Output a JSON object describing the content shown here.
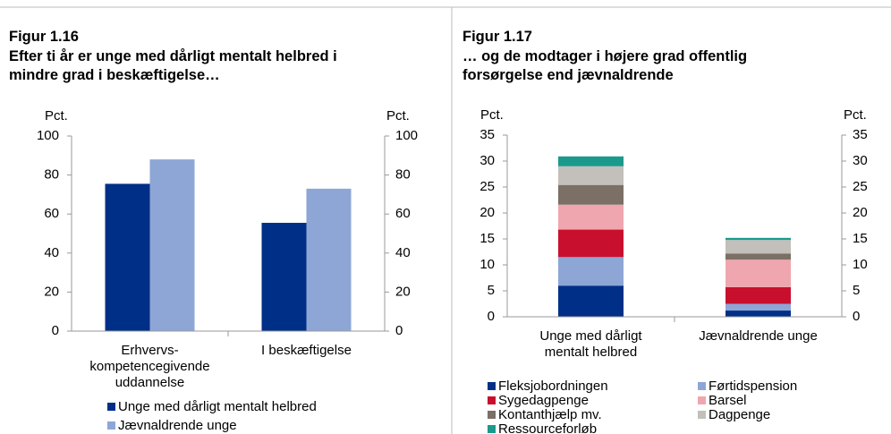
{
  "chart_data": [
    {
      "type": "bar",
      "figure": "Figur 1.16",
      "title": "Efter ti år er unge med dårligt mentalt helbred i mindre grad i beskæftigelse…",
      "y_label": "Pct.",
      "y2_label": "Pct.",
      "categories": [
        "Erhvervs-\nkompetencegivende\nuddannelse",
        "I beskæftigelse"
      ],
      "series": [
        {
          "name": "Unge med dårligt mentalt helbred",
          "color": "#002f87",
          "values": [
            75.5,
            55.5
          ]
        },
        {
          "name": "Jævnaldrende unge",
          "color": "#8ea6d6",
          "values": [
            88,
            73
          ]
        }
      ],
      "ylim": [
        0,
        100
      ],
      "yticks": [
        0,
        20,
        40,
        60,
        80,
        100
      ],
      "y2lim": [
        0,
        100
      ],
      "y2ticks": [
        0,
        20,
        40,
        60,
        80,
        100
      ]
    },
    {
      "type": "stacked_bar",
      "figure": "Figur 1.17",
      "title": "… og de modtager i højere grad offentlig forsørgelse end jævnaldrende",
      "y_label": "Pct.",
      "y2_label": "Pct.",
      "categories": [
        "Unge med dårligt\nmentalt helbred",
        "Jævnaldrende unge"
      ],
      "series": [
        {
          "name": "Fleksjobordningen",
          "color": "#002f87",
          "values": [
            6,
            1.2
          ]
        },
        {
          "name": "Førtidspension",
          "color": "#8ea6d6",
          "values": [
            5.5,
            1.3
          ]
        },
        {
          "name": "Sygedagpenge",
          "color": "#c8102e",
          "values": [
            5.3,
            3.2
          ]
        },
        {
          "name": "Barsel",
          "color": "#f0a6ae",
          "values": [
            4.8,
            5.3
          ]
        },
        {
          "name": "Kontanthjælp mv.",
          "color": "#7b6f66",
          "values": [
            3.8,
            1.2
          ]
        },
        {
          "name": "Dagpenge",
          "color": "#c3bfba",
          "values": [
            3.6,
            2.6
          ]
        },
        {
          "name": "Ressourceforløb",
          "color": "#1a9a8c",
          "values": [
            1.9,
            0.4
          ]
        }
      ],
      "ylim": [
        0,
        35
      ],
      "yticks": [
        0,
        5,
        10,
        15,
        20,
        25,
        30,
        35
      ],
      "y2lim": [
        0,
        35
      ],
      "y2ticks": [
        0,
        5,
        10,
        15,
        20,
        25,
        30,
        35
      ]
    }
  ]
}
